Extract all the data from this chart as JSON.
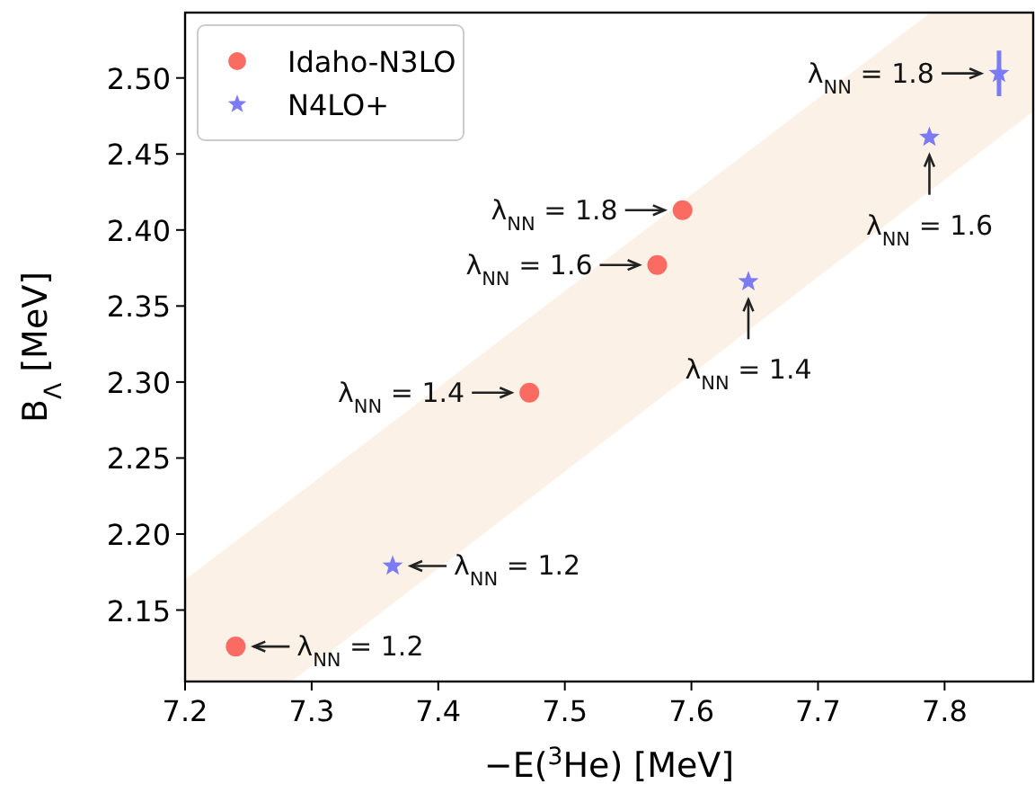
{
  "chart_data": {
    "type": "scatter",
    "xlabel": "−E($^{3}$He) [MeV]",
    "ylabel": "B$_{Λ}$ [MeV]",
    "xlim": [
      7.2,
      7.87
    ],
    "ylim": [
      2.103,
      2.543
    ],
    "xticks": [
      7.2,
      7.3,
      7.4,
      7.5,
      7.6,
      7.7,
      7.8
    ],
    "yticks": [
      2.15,
      {
        "value": 2.2,
        "label": "2.20"
      },
      2.25,
      {
        "value": 2.3,
        "label": "2.30"
      },
      2.35,
      {
        "value": 2.4,
        "label": "2.40"
      },
      2.45,
      {
        "value": 2.5,
        "label": "2.50"
      }
    ],
    "grid": false,
    "legend": "top left",
    "series": [
      {
        "type": "area",
        "color": "#fbf1e6",
        "x": [
          7.2,
          7.284,
          7.789,
          7.87
        ],
        "values": [
          null,
          null,
          null,
          null
        ],
        "lower": [
          2.103,
          2.103,
          2.426,
          2.478
        ],
        "upper": [
          2.17,
          2.223,
          2.543,
          2.543
        ]
      },
      {
        "name": "Idaho-N3LO",
        "color": "#fa6b62",
        "marker": "circle",
        "x": [
          7.24,
          7.472,
          7.573,
          7.593
        ],
        "values": [
          2.126,
          2.293,
          2.377,
          2.413
        ]
      },
      {
        "name": "N4LO+",
        "color": "#7b7bf5",
        "marker": "star",
        "x": [
          7.364,
          7.645,
          7.788,
          7.843
        ],
        "values": [
          2.179,
          2.366,
          2.461,
          2.503
        ],
        "errors": [
          null,
          null,
          null,
          0.015
        ]
      }
    ],
    "annotations": [
      {
        "text": "λ$_{NN}$ = 1.2",
        "x": 7.24,
        "y": 2.126
      },
      {
        "text": "λ$_{NN}$ = 1.2",
        "x": 7.364,
        "y": 2.179
      },
      {
        "text": "λ$_{NN}$ = 1.4",
        "x": 7.472,
        "y": 2.293
      },
      {
        "text": "λ$_{NN}$ = 1.6",
        "x": 7.573,
        "y": 2.377
      },
      {
        "text": "λ$_{NN}$ = 1.8",
        "x": 7.593,
        "y": 2.413
      },
      {
        "text": "λ$_{NN}$ = 1.4",
        "x": 7.645,
        "y": 2.366
      },
      {
        "text": "λ$_{NN}$ = 1.6",
        "x": 7.788,
        "y": 2.461
      },
      {
        "text": "λ$_{NN}$ = 1.8",
        "x": 7.843,
        "y": 2.503
      }
    ]
  }
}
